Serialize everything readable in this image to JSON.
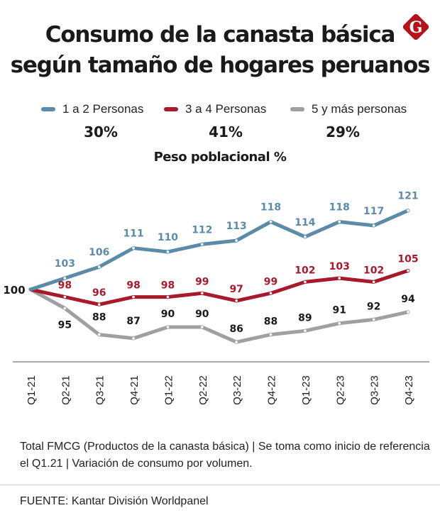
{
  "header": {
    "title_line1": "Consumo de la canasta básica",
    "title_line2": "según tamaño de hogares peruanos",
    "logo_letter": "G",
    "logo_color": "#b5121b"
  },
  "legend": [
    {
      "label": "1 a 2 Personas",
      "color": "#5b8ba8",
      "share": "30%"
    },
    {
      "label": "3 a 4 Personas",
      "color": "#a7192b",
      "share": "41%"
    },
    {
      "label": "5 y más personas",
      "color": "#a0a0a2",
      "share": "29%"
    }
  ],
  "subtitle": "Peso poblacional %",
  "chart_data": {
    "type": "line",
    "title": "Consumo de la canasta básica según tamaño de hogares peruanos",
    "xlabel": "",
    "ylabel": "",
    "categories": [
      "Q1-21",
      "Q2-21",
      "Q3-21",
      "Q4-21",
      "Q1-22",
      "Q2-22",
      "Q3-22",
      "Q4-22",
      "Q1-23",
      "Q2-23",
      "Q3-23",
      "Q4-23"
    ],
    "series": [
      {
        "name": "1 a 2 Personas",
        "color": "#5b8ba8",
        "label_color": "#5b8ba8",
        "values": [
          100,
          103,
          106,
          111,
          110,
          112,
          113,
          118,
          114,
          118,
          117,
          121
        ]
      },
      {
        "name": "3 a 4 Personas",
        "color": "#a7192b",
        "label_color": "#a7192b",
        "values": [
          100,
          98,
          96,
          98,
          98,
          99,
          97,
          99,
          102,
          103,
          102,
          105
        ]
      },
      {
        "name": "5 y más personas",
        "color": "#a0a0a2",
        "label_color": "#1a1a1a",
        "values": [
          100,
          95,
          88,
          87,
          90,
          90,
          86,
          88,
          89,
          91,
          92,
          94
        ]
      }
    ],
    "start_label": "100",
    "grid": false,
    "legend_position": "top"
  },
  "footer": {
    "note": "Total FMCG (Productos de la canasta básica) | Se toma como inicio de referencia el Q1.21 | Variación de consumo por volumen.",
    "source": "FUENTE: Kantar División Worldpanel"
  }
}
